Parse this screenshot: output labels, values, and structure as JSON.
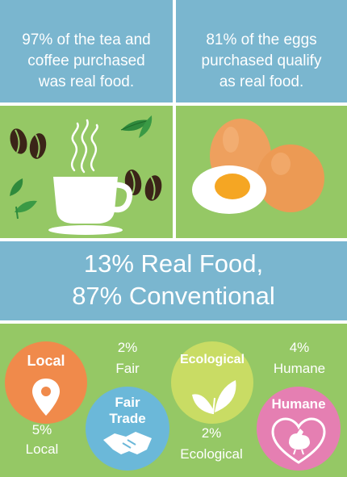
{
  "top_left": {
    "statement": [
      "97% of the tea and",
      "coffee purchased",
      "was real food."
    ]
  },
  "top_right": {
    "statement": [
      "81% of the eggs",
      "purchased qualify",
      "as real food."
    ]
  },
  "banner": {
    "line1": "13% Real Food,",
    "line2": "87% Conventional"
  },
  "categories": [
    {
      "badge": "Local",
      "value": "5%",
      "label": "Local",
      "color": "#f08a4b",
      "icon": "location-pin-icon"
    },
    {
      "badge_line1": "Fair",
      "badge_line2": "Trade",
      "value": "2%",
      "label": "Fair",
      "color": "#6bb8d9",
      "icon": "handshake-icon"
    },
    {
      "badge": "Ecological",
      "value": "2%",
      "label": "Ecological",
      "color": "#c9dc64",
      "icon": "leaf-icon"
    },
    {
      "badge": "Humane",
      "value": "4%",
      "label": "Humane",
      "color": "#e57fb2",
      "icon": "chicken-heart-icon"
    }
  ],
  "colors": {
    "blue": "#7ab6cf",
    "green": "#95c865",
    "bean": "#3b2418",
    "egg": "#eea05e",
    "yolk": "#f5a623"
  }
}
